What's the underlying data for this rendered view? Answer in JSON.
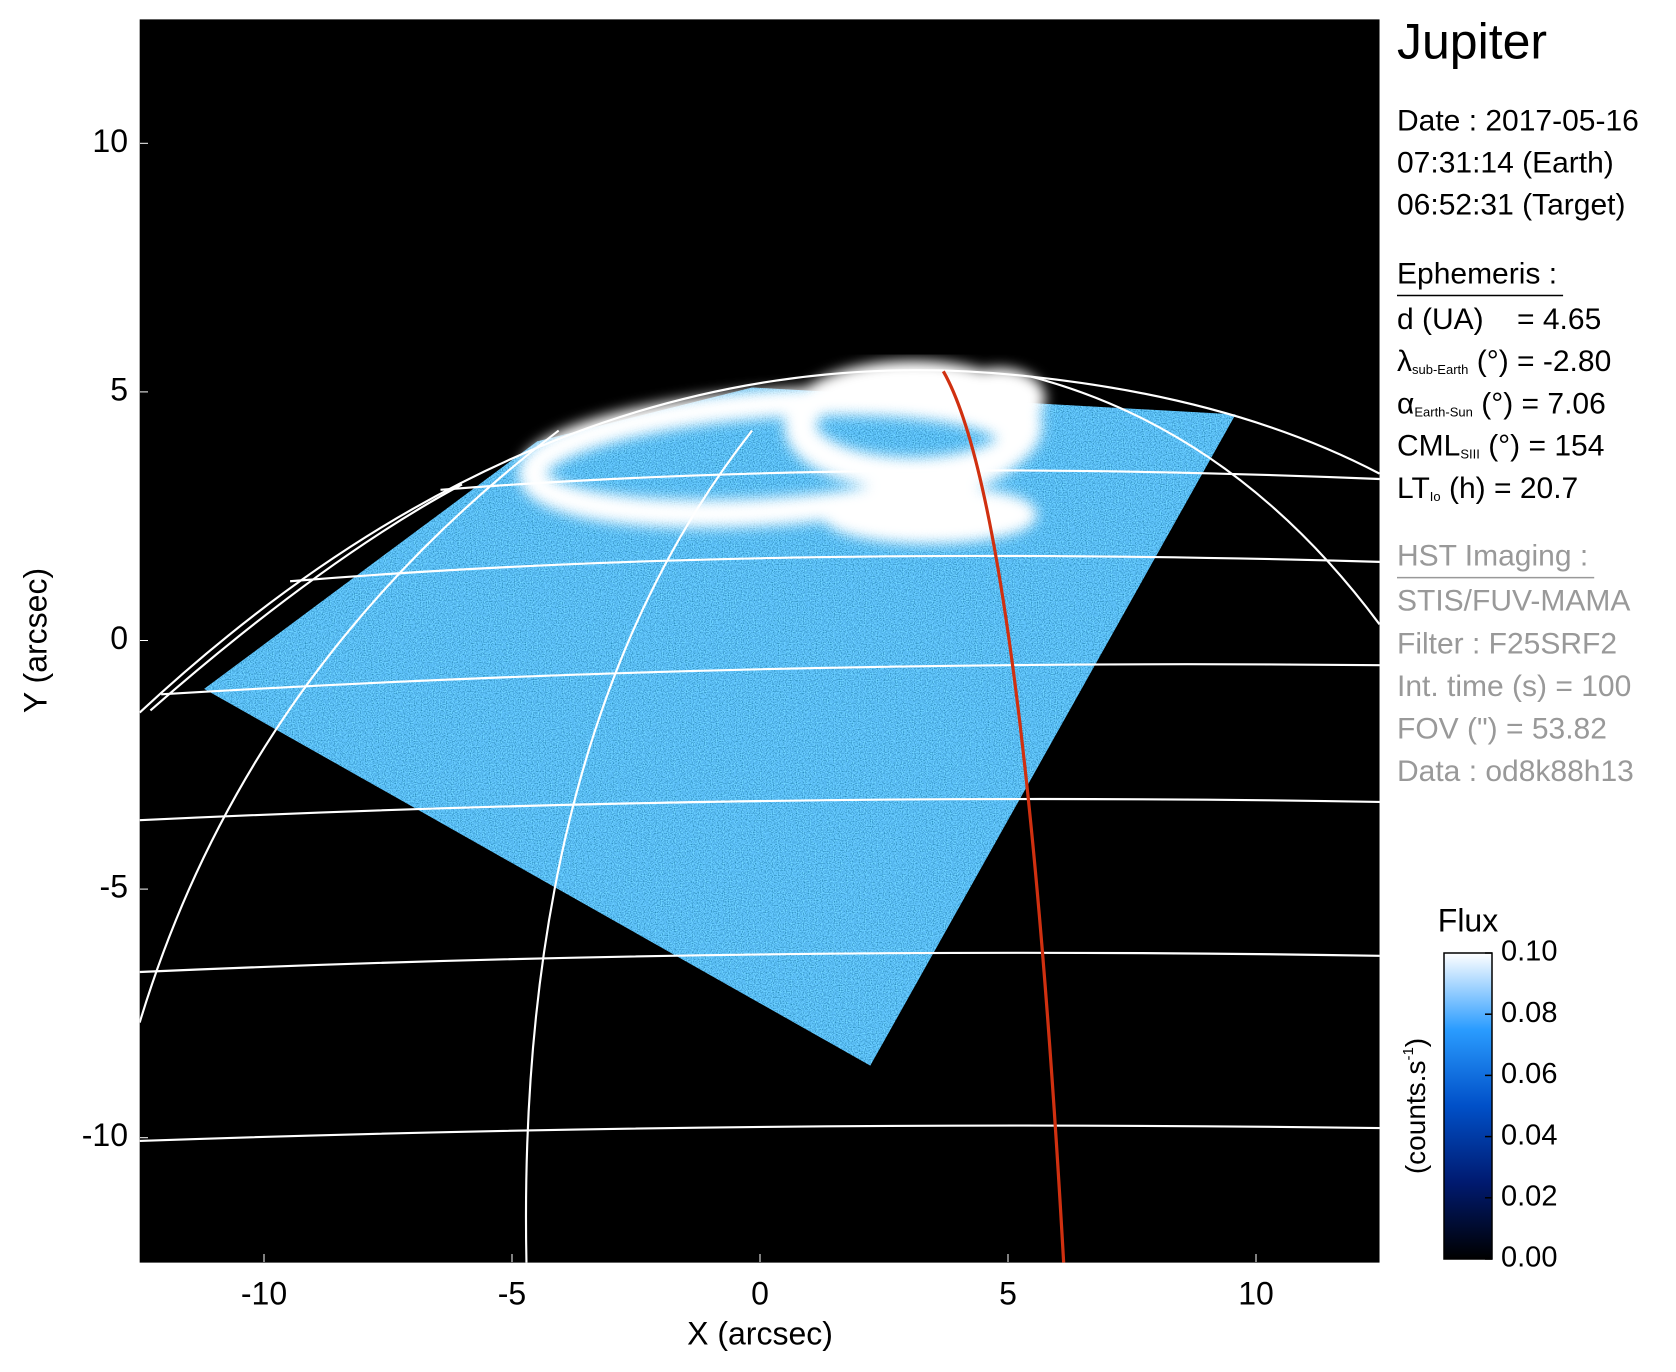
{
  "chart_data": {
    "type": "image",
    "xlabel": "X (arcsec)",
    "ylabel": "Y (arcsec)",
    "xlim": [
      -12.5,
      12.5
    ],
    "ylim": [
      -12.5,
      12.5
    ],
    "xticks": [
      -10,
      -5,
      0,
      5,
      10
    ],
    "yticks": [
      -10,
      -5,
      0,
      5,
      10
    ],
    "colorbar": {
      "title": "Flux",
      "label": {
        "text": "(counts.s",
        "sup": "-1",
        "close": ")"
      },
      "lim": [
        0,
        0.1
      ],
      "ticks": [
        {
          "value": 0,
          "label": "0.00"
        },
        {
          "value": 0.02,
          "label": "0.02"
        },
        {
          "value": 0.04,
          "label": "0.04"
        },
        {
          "value": 0.06,
          "label": "0.06"
        },
        {
          "value": 0.08,
          "label": "0.08"
        },
        {
          "value": 0.1,
          "label": "0.10"
        }
      ],
      "colors": [
        "#000000",
        "#001a70",
        "#0050c8",
        "#2a9cff",
        "#ffffff"
      ]
    }
  },
  "info": {
    "title": "Jupiter",
    "date": [
      "Date : 2017-05-16",
      "07:31:14 (Earth)",
      "06:52:31 (Target)"
    ],
    "ephemeris": {
      "heading": "Ephemeris :",
      "rows": [
        {
          "text": "d (UA)    = 4.65"
        },
        {
          "symbol": "λ",
          "sub": "sub-Earth",
          "text": " (°) = -2.80"
        },
        {
          "symbol": "α",
          "sub": "Earth-Sun",
          "text": " (°) = 7.06"
        },
        {
          "symbol": "CML",
          "sub": "SIII",
          "text": " (°) = 154"
        },
        {
          "symbol": "LT",
          "sub": "Io",
          "text": " (h) = 20.7"
        }
      ]
    },
    "imaging": {
      "heading": "HST Imaging :",
      "rows": [
        "STIS/FUV-MAMA",
        "Filter : F25SRF2",
        "Int. time (s) = 100",
        "FOV (\") = 53.82",
        "Data : od8k88h13"
      ]
    }
  }
}
